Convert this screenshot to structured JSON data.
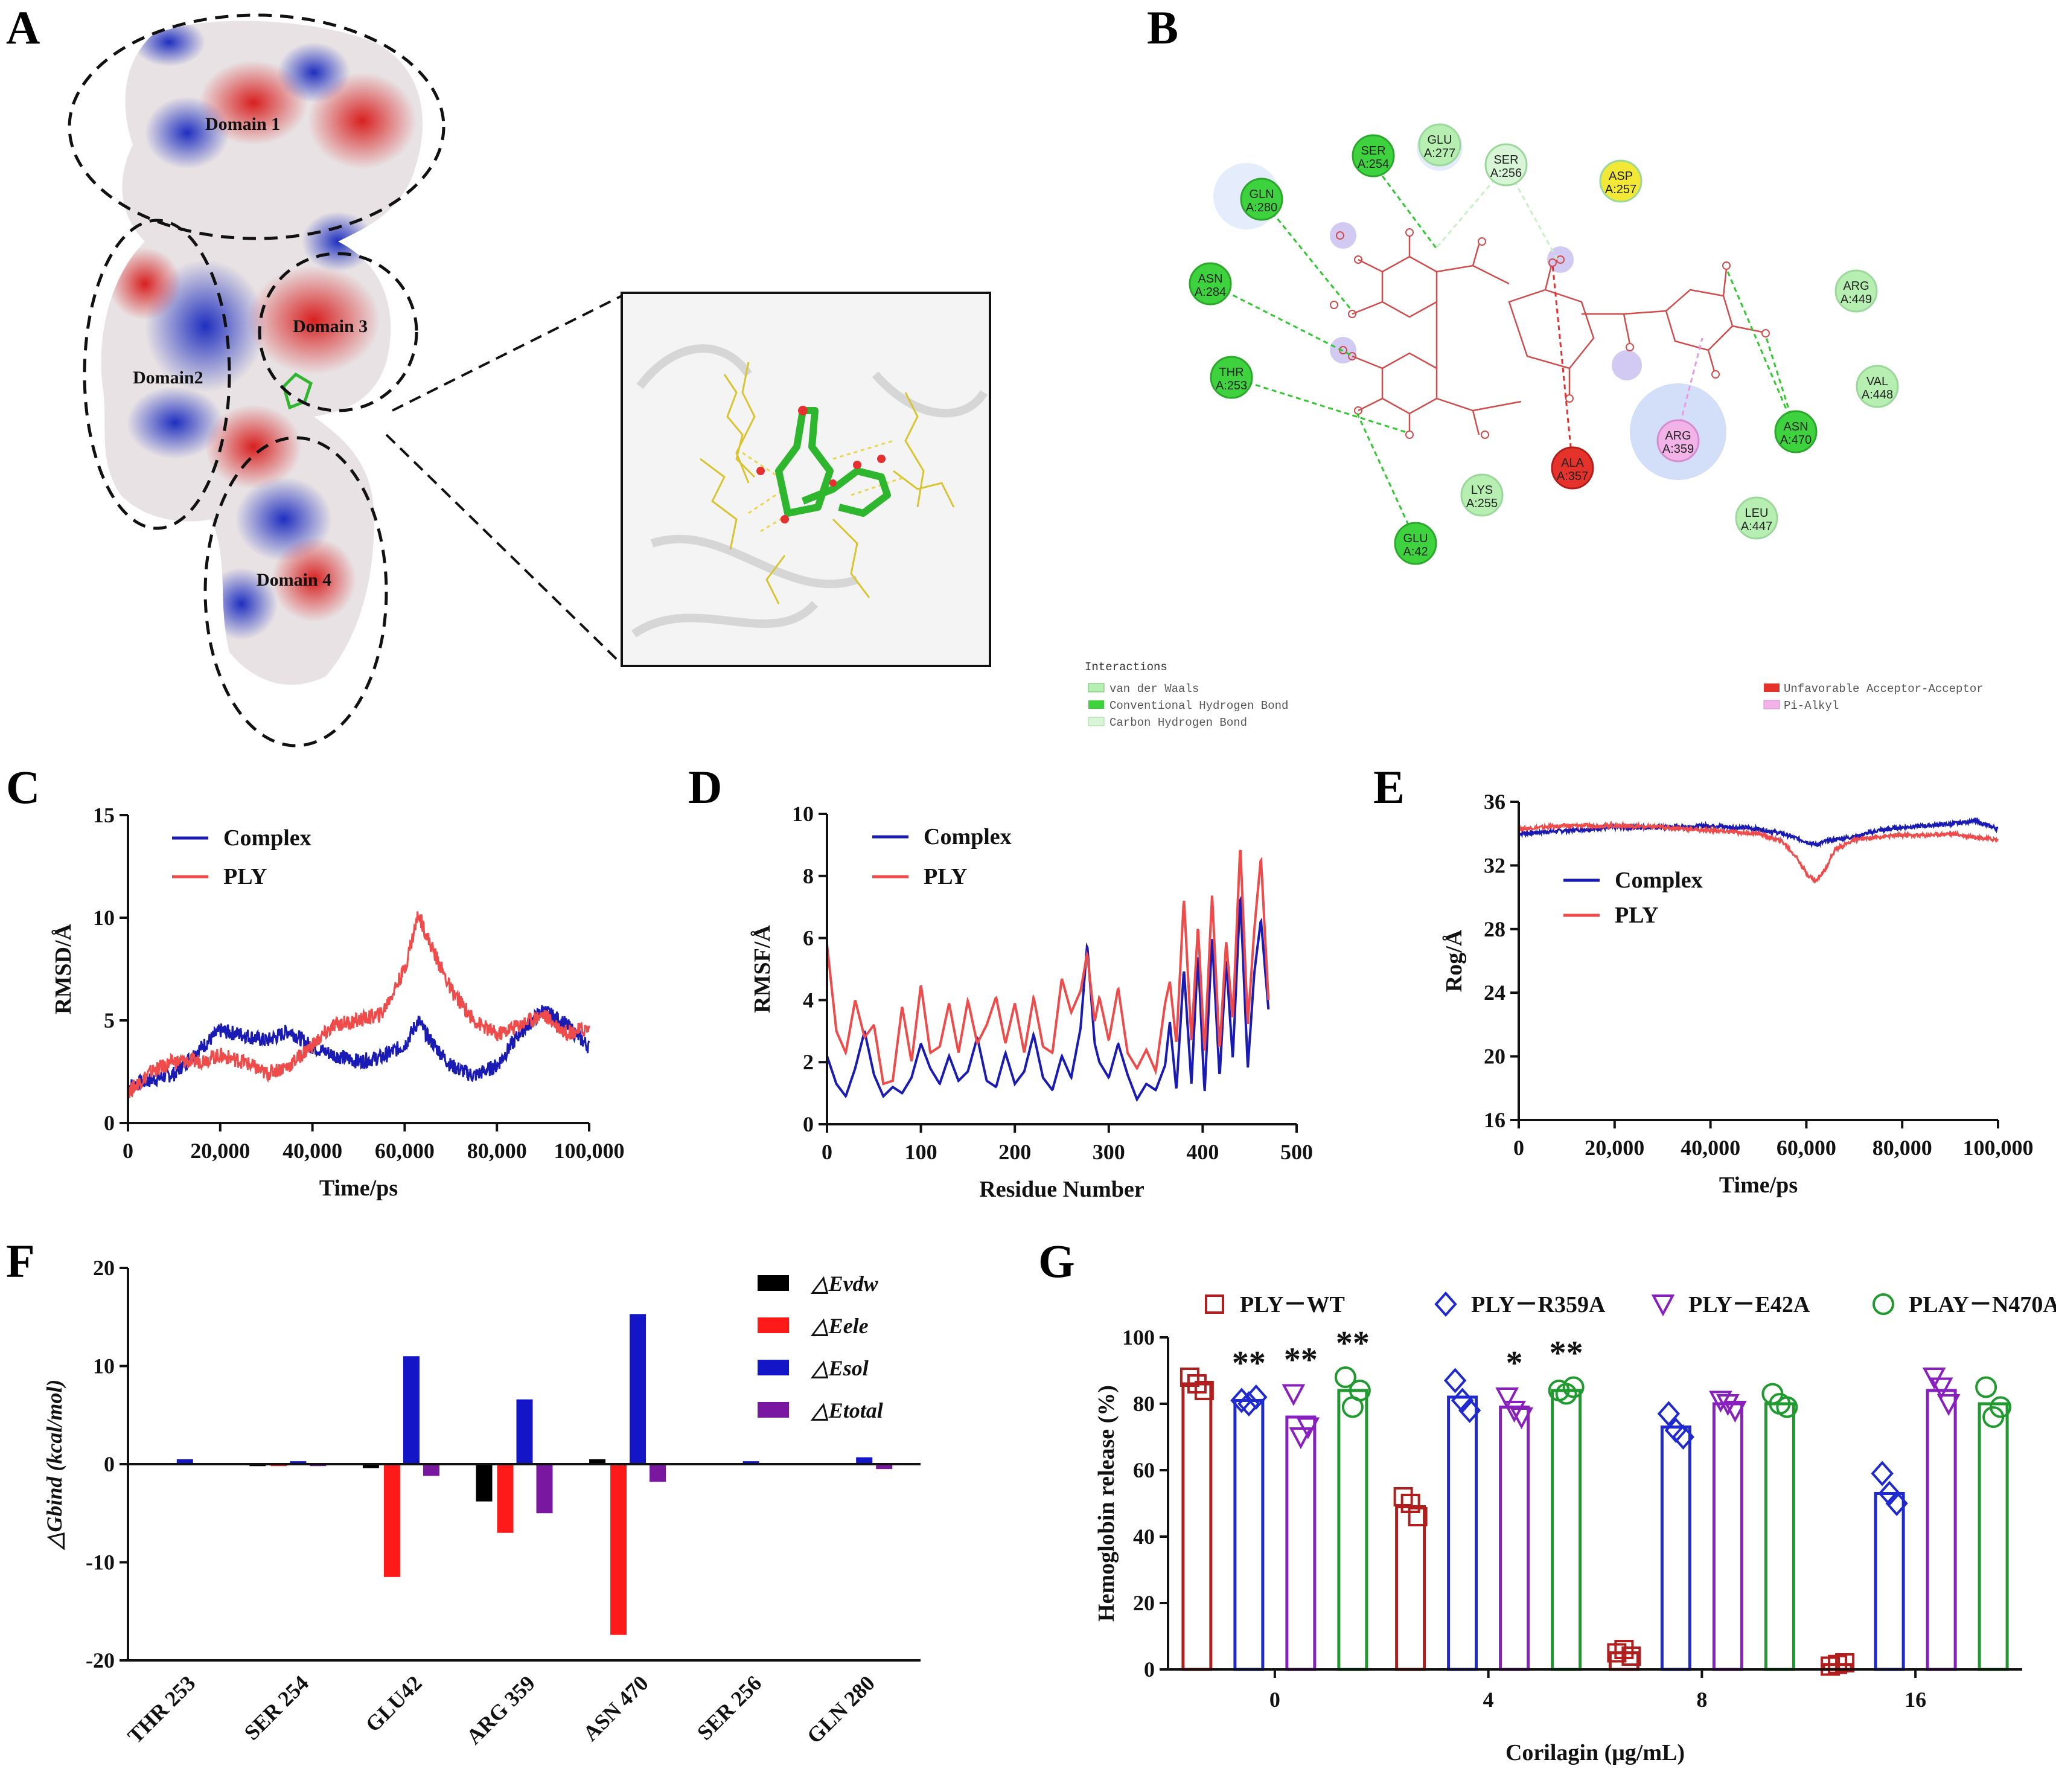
{
  "panel_labels": {
    "a": "A",
    "b": "B",
    "c": "C",
    "d": "D",
    "e": "E",
    "f": "F",
    "g": "G"
  },
  "panel_a": {
    "domains": [
      "Domain 1",
      "Domain2",
      "Domain 3",
      "Domain 4"
    ]
  },
  "panel_b": {
    "residues": [
      {
        "id": "res_ser254",
        "l1": "SER",
        "l2": "A:254",
        "kind": "conventional"
      },
      {
        "id": "res_glu277",
        "l1": "GLU",
        "l2": "A:277",
        "kind": "vdw"
      },
      {
        "id": "res_ser256",
        "l1": "SER",
        "l2": "A:256",
        "kind": "carbon"
      },
      {
        "id": "res_asp257",
        "l1": "ASP",
        "l2": "A:257",
        "kind": "asp"
      },
      {
        "id": "res_gln280",
        "l1": "GLN",
        "l2": "A:280",
        "kind": "conventional"
      },
      {
        "id": "res_asn284",
        "l1": "ASN",
        "l2": "A:284",
        "kind": "conventional"
      },
      {
        "id": "res_thr253",
        "l1": "THR",
        "l2": "A:253",
        "kind": "conventional"
      },
      {
        "id": "res_arg449",
        "l1": "ARG",
        "l2": "A:449",
        "kind": "vdw"
      },
      {
        "id": "res_val448",
        "l1": "VAL",
        "l2": "A:448",
        "kind": "vdw"
      },
      {
        "id": "res_asn470",
        "l1": "ASN",
        "l2": "A:470",
        "kind": "conventional"
      },
      {
        "id": "res_arg359",
        "l1": "ARG",
        "l2": "A:359",
        "kind": "pialkyl"
      },
      {
        "id": "res_ala357",
        "l1": "ALA",
        "l2": "A:357",
        "kind": "unfavorable"
      },
      {
        "id": "res_lys255",
        "l1": "LYS",
        "l2": "A:255",
        "kind": "vdw"
      },
      {
        "id": "res_leu447",
        "l1": "LEU",
        "l2": "A:447",
        "kind": "vdw"
      },
      {
        "id": "res_glu42",
        "l1": "GLU",
        "l2": "A:42",
        "kind": "conventional"
      }
    ],
    "legend_title": "Interactions",
    "legend": [
      "van der Waals",
      "Conventional Hydrogen Bond",
      "Carbon Hydrogen Bond",
      "Unfavorable Acceptor-Acceptor",
      "Pi-Alkyl"
    ],
    "colors": {
      "vdw": "#b7efb2",
      "conventional": "#3fd23f",
      "carbon": "#d8f5d8",
      "unfavorable": "#e5322b",
      "pialkyl": "#f2b4e8",
      "asp": "#f2e835"
    }
  },
  "chart_data": [
    {
      "panel": "C",
      "type": "line",
      "title": "",
      "xlabel": "Time/ps",
      "ylabel": "RMSD/Å",
      "xlim": [
        0,
        100000
      ],
      "ylim": [
        0,
        15
      ],
      "xticks": [
        "0",
        "20,000",
        "40,000",
        "60,000",
        "80,000",
        "100,000"
      ],
      "yticks": [
        "0",
        "5",
        "10",
        "15"
      ],
      "series": [
        {
          "name": "Complex",
          "color": "#1a1ab5",
          "x": [
            0,
            5000,
            10000,
            15000,
            20000,
            25000,
            30000,
            35000,
            40000,
            45000,
            50000,
            55000,
            60000,
            63000,
            65000,
            70000,
            75000,
            80000,
            85000,
            90000,
            95000,
            100000
          ],
          "values": [
            1.8,
            2.1,
            2.4,
            3.5,
            4.5,
            4.3,
            4.0,
            4.5,
            3.7,
            3.3,
            3.0,
            3.2,
            3.8,
            5.0,
            4.2,
            2.8,
            2.3,
            2.8,
            4.4,
            5.5,
            4.8,
            3.7
          ]
        },
        {
          "name": "PLY",
          "color": "#ef4b4b",
          "x": [
            0,
            5000,
            10000,
            15000,
            20000,
            25000,
            30000,
            35000,
            40000,
            45000,
            50000,
            55000,
            60000,
            63000,
            65000,
            70000,
            75000,
            80000,
            85000,
            90000,
            95000,
            100000
          ],
          "values": [
            1.5,
            2.5,
            3.0,
            3.0,
            3.3,
            3.0,
            2.4,
            2.8,
            3.8,
            4.8,
            5.0,
            5.3,
            7.5,
            10.2,
            9.0,
            6.5,
            5.0,
            4.3,
            4.8,
            5.3,
            4.4,
            4.6
          ]
        }
      ]
    },
    {
      "panel": "D",
      "type": "line",
      "title": "",
      "xlabel": "Residue Number",
      "ylabel": "RMSF/Å",
      "xlim": [
        0,
        500
      ],
      "ylim": [
        0,
        10
      ],
      "xticks": [
        "0",
        "100",
        "200",
        "300",
        "400",
        "500"
      ],
      "yticks": [
        "0",
        "2",
        "4",
        "6",
        "8",
        "10"
      ],
      "series": [
        {
          "name": "Complex",
          "color": "#1a1ab5",
          "x": [
            0,
            10,
            20,
            30,
            40,
            50,
            60,
            70,
            80,
            90,
            100,
            110,
            120,
            130,
            140,
            150,
            160,
            170,
            180,
            190,
            200,
            210,
            220,
            230,
            240,
            250,
            260,
            270,
            277,
            285,
            290,
            300,
            310,
            320,
            330,
            340,
            350,
            360,
            365,
            372,
            380,
            388,
            395,
            402,
            410,
            418,
            425,
            432,
            440,
            448,
            455,
            462,
            470
          ],
          "values": [
            2.2,
            1.3,
            0.9,
            1.8,
            3.0,
            1.6,
            0.9,
            1.2,
            1.0,
            1.5,
            2.6,
            1.8,
            1.3,
            2.2,
            1.4,
            1.7,
            2.8,
            1.4,
            1.2,
            2.3,
            1.3,
            1.7,
            2.9,
            1.5,
            1.1,
            2.2,
            1.5,
            3.1,
            5.8,
            2.6,
            2.0,
            1.5,
            2.6,
            1.6,
            0.8,
            1.3,
            1.1,
            1.9,
            3.3,
            1.1,
            5.0,
            1.3,
            5.5,
            1.0,
            6.0,
            1.5,
            5.3,
            2.1,
            7.4,
            1.8,
            4.9,
            6.6,
            3.7
          ]
        },
        {
          "name": "PLY",
          "color": "#ef4b4b",
          "x": [
            0,
            10,
            20,
            30,
            40,
            50,
            60,
            70,
            80,
            90,
            100,
            110,
            120,
            130,
            140,
            150,
            160,
            170,
            180,
            190,
            200,
            210,
            220,
            230,
            240,
            250,
            260,
            270,
            277,
            285,
            290,
            300,
            310,
            320,
            330,
            340,
            350,
            360,
            365,
            372,
            380,
            388,
            395,
            402,
            410,
            418,
            425,
            432,
            440,
            448,
            455,
            462,
            470
          ],
          "values": [
            5.8,
            3.0,
            2.3,
            4.0,
            2.8,
            3.2,
            1.3,
            1.4,
            3.8,
            2.0,
            4.5,
            2.3,
            2.5,
            3.9,
            2.3,
            4.0,
            2.6,
            3.2,
            4.1,
            2.6,
            3.9,
            2.3,
            4.1,
            2.5,
            2.3,
            4.7,
            3.6,
            4.3,
            5.5,
            3.3,
            4.1,
            2.7,
            4.4,
            2.3,
            1.8,
            2.4,
            1.7,
            3.9,
            4.6,
            2.6,
            7.3,
            2.7,
            6.4,
            2.3,
            7.4,
            2.4,
            5.9,
            3.4,
            9.0,
            3.2,
            6.3,
            8.6,
            4.0
          ]
        }
      ]
    },
    {
      "panel": "E",
      "type": "line",
      "title": "",
      "xlabel": "Time/ps",
      "ylabel": "Rog/Å",
      "xlim": [
        0,
        100000
      ],
      "ylim": [
        16,
        36
      ],
      "xticks": [
        "0",
        "20,000",
        "40,000",
        "60,000",
        "80,000",
        "100,000"
      ],
      "yticks": [
        "16",
        "20",
        "24",
        "28",
        "32",
        "36"
      ],
      "series": [
        {
          "name": "Complex",
          "color": "#1a1ab5",
          "x": [
            0,
            10000,
            20000,
            30000,
            40000,
            50000,
            55000,
            60000,
            62000,
            65000,
            70000,
            75000,
            80000,
            85000,
            90000,
            95000,
            100000
          ],
          "values": [
            34.0,
            34.2,
            34.4,
            34.4,
            34.5,
            34.3,
            34.0,
            33.5,
            33.3,
            33.6,
            33.8,
            34.2,
            34.4,
            34.5,
            34.6,
            34.8,
            34.3
          ]
        },
        {
          "name": "PLY",
          "color": "#ef4b4b",
          "x": [
            0,
            10000,
            20000,
            30000,
            40000,
            50000,
            55000,
            58000,
            60000,
            62000,
            64000,
            66000,
            70000,
            75000,
            80000,
            85000,
            90000,
            95000,
            100000
          ],
          "values": [
            34.3,
            34.5,
            34.5,
            34.4,
            34.2,
            34.0,
            33.5,
            32.5,
            31.5,
            31.0,
            31.8,
            33.0,
            33.6,
            33.8,
            33.9,
            33.9,
            34.0,
            33.8,
            33.6
          ]
        }
      ]
    },
    {
      "panel": "F",
      "type": "bar",
      "title": "",
      "xlabel": "",
      "ylabel": "△Gbind (kcal/mol)",
      "ylim": [
        -20,
        20
      ],
      "yticks": [
        "-20",
        "-10",
        "0",
        "10",
        "20"
      ],
      "categories": [
        "THR 253",
        "SER 254",
        "GLU42",
        "ARG 359",
        "ASN 470",
        "SER 256",
        "GLN 280"
      ],
      "series": [
        {
          "name": "△Evdw",
          "color": "#000000",
          "values": [
            0.0,
            -0.2,
            -0.4,
            -3.8,
            0.5,
            0.0,
            0.0
          ]
        },
        {
          "name": "△Eele",
          "color": "#ff1a1a",
          "values": [
            0.0,
            -0.2,
            -11.5,
            -7.0,
            -17.4,
            0.0,
            -0.1
          ]
        },
        {
          "name": "△Esol",
          "color": "#1515c8",
          "values": [
            0.5,
            0.3,
            11.0,
            6.6,
            15.3,
            0.3,
            0.7
          ]
        },
        {
          "name": "△Etotal",
          "color": "#7a17a0",
          "values": [
            0.0,
            -0.2,
            -1.2,
            -5.0,
            -1.8,
            0.0,
            -0.5
          ]
        }
      ]
    },
    {
      "panel": "G",
      "type": "bar",
      "title": "",
      "xlabel": "Corilagin (μg/mL)",
      "ylabel": "Hemoglobin release (%)",
      "ylim": [
        0,
        100
      ],
      "yticks": [
        "0",
        "20",
        "40",
        "60",
        "80",
        "100"
      ],
      "categories": [
        "0",
        "4",
        "8",
        "16"
      ],
      "series": [
        {
          "name": "PLY－WT",
          "color": "#b21e1e",
          "marker": "square",
          "values": [
            86,
            49,
            5,
            1.5
          ],
          "points": [
            [
              88,
              84,
              86
            ],
            [
              52,
              46,
              50
            ],
            [
              5,
              4,
              6
            ],
            [
              1,
              2,
              1.5
            ]
          ]
        },
        {
          "name": "PLY－R359A",
          "color": "#1e2ad0",
          "marker": "diamond",
          "values": [
            81,
            82,
            73,
            53
          ],
          "points": [
            [
              81,
              82,
              80
            ],
            [
              87,
              78,
              81
            ],
            [
              77,
              70,
              72
            ],
            [
              59,
              50,
              53
            ]
          ]
        },
        {
          "name": "PLY－E42A",
          "color": "#8a1fbf",
          "marker": "triangle",
          "values": [
            76,
            79,
            80,
            84
          ],
          "points": [
            [
              83,
              73,
              70
            ],
            [
              82,
              76,
              78
            ],
            [
              81,
              78,
              80
            ],
            [
              88,
              80,
              85
            ]
          ]
        },
        {
          "name": "PLAY－N470A",
          "color": "#1e9a2e",
          "marker": "circle",
          "values": [
            84,
            84,
            80,
            80
          ],
          "points": [
            [
              88,
              84,
              79
            ],
            [
              84,
              85,
              83
            ],
            [
              83,
              79,
              80
            ],
            [
              85,
              79,
              76
            ]
          ]
        }
      ],
      "significance": [
        "",
        "**",
        "**",
        "**",
        "",
        "",
        "*",
        "**",
        "",
        "",
        "",
        "",
        "",
        "",
        "",
        ""
      ]
    }
  ]
}
